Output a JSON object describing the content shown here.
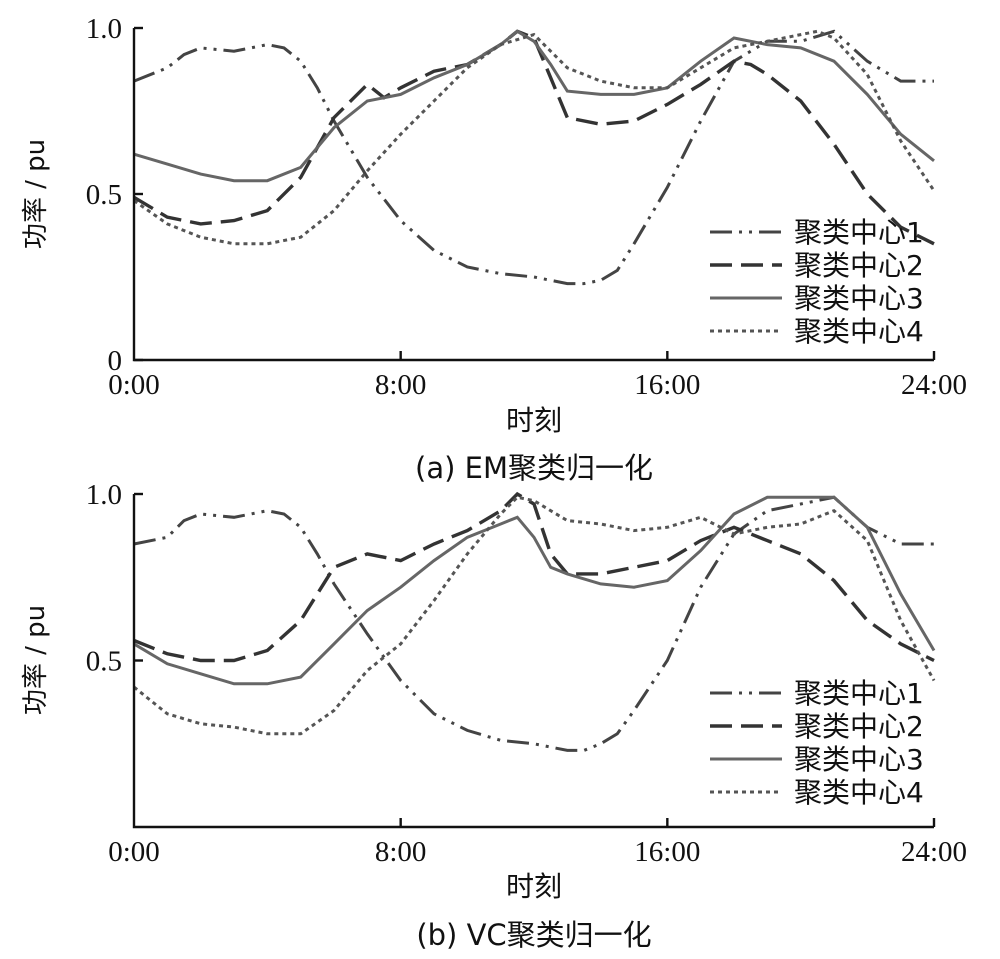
{
  "chart_data": [
    {
      "type": "line",
      "caption": "(a)  EM聚类归一化",
      "xlabel": "时刻",
      "ylabel": "功率 / pu",
      "x_ticks": [
        "0:00",
        "8:00",
        "16:00",
        "24:00"
      ],
      "y_ticks": [
        "0",
        "0.5",
        "1.0"
      ],
      "xlim": [
        0,
        24
      ],
      "ylim": [
        0,
        1.0
      ],
      "legend_position": "lower-right",
      "series": [
        {
          "name": "聚类中心1",
          "x": [
            0,
            1,
            1.5,
            2,
            3,
            4,
            4.5,
            5,
            5.5,
            6,
            7,
            8,
            9,
            10,
            11,
            12,
            13,
            13.5,
            14,
            14.5,
            15,
            16,
            17,
            18,
            19,
            20,
            21,
            22,
            23,
            24
          ],
          "values": [
            0.84,
            0.88,
            0.92,
            0.94,
            0.93,
            0.95,
            0.94,
            0.9,
            0.82,
            0.72,
            0.55,
            0.42,
            0.33,
            0.28,
            0.26,
            0.25,
            0.23,
            0.23,
            0.24,
            0.27,
            0.35,
            0.52,
            0.72,
            0.9,
            0.96,
            0.96,
            0.99,
            0.9,
            0.84,
            0.84
          ]
        },
        {
          "name": "聚类中心2",
          "x": [
            0,
            1,
            2,
            3,
            4,
            5,
            6,
            7,
            7.5,
            8,
            9,
            10,
            11,
            11.5,
            12,
            12.5,
            13,
            14,
            15,
            16,
            17,
            18,
            18.5,
            19,
            20,
            21,
            22,
            23,
            24
          ],
          "values": [
            0.49,
            0.43,
            0.41,
            0.42,
            0.45,
            0.55,
            0.73,
            0.83,
            0.79,
            0.82,
            0.87,
            0.89,
            0.95,
            0.99,
            0.97,
            0.85,
            0.73,
            0.71,
            0.72,
            0.77,
            0.83,
            0.9,
            0.89,
            0.86,
            0.78,
            0.65,
            0.5,
            0.4,
            0.35
          ]
        },
        {
          "name": "聚类中心3",
          "x": [
            0,
            1,
            2,
            3,
            4,
            5,
            6,
            7,
            8,
            9,
            10,
            11,
            11.5,
            12,
            12.5,
            13,
            14,
            15,
            16,
            17,
            18,
            19,
            20,
            21,
            22,
            23,
            24
          ],
          "values": [
            0.62,
            0.59,
            0.56,
            0.54,
            0.54,
            0.58,
            0.7,
            0.78,
            0.8,
            0.85,
            0.89,
            0.95,
            0.99,
            0.96,
            0.89,
            0.81,
            0.8,
            0.8,
            0.82,
            0.9,
            0.97,
            0.95,
            0.94,
            0.9,
            0.8,
            0.68,
            0.6
          ]
        },
        {
          "name": "聚类中心4",
          "x": [
            0,
            1,
            2,
            3,
            4,
            5,
            6,
            7,
            8,
            9,
            10,
            11,
            12,
            13,
            14,
            15,
            16,
            17,
            18,
            19,
            20,
            20.5,
            21,
            22,
            23,
            24
          ],
          "values": [
            0.48,
            0.41,
            0.37,
            0.35,
            0.35,
            0.37,
            0.45,
            0.57,
            0.68,
            0.78,
            0.88,
            0.95,
            0.98,
            0.88,
            0.84,
            0.82,
            0.82,
            0.88,
            0.94,
            0.96,
            0.98,
            0.99,
            0.97,
            0.86,
            0.66,
            0.51
          ]
        }
      ]
    },
    {
      "type": "line",
      "caption": "(b)  VC聚类归一化",
      "xlabel": "时刻",
      "ylabel": "功率 / pu",
      "x_ticks": [
        "0:00",
        "8:00",
        "16:00",
        "24:00"
      ],
      "y_ticks": [
        "0.5",
        "1.0"
      ],
      "xlim": [
        0,
        24
      ],
      "ylim": [
        0,
        1.0
      ],
      "legend_position": "lower-right",
      "series": [
        {
          "name": "聚类中心1",
          "x": [
            0,
            1,
            1.5,
            2,
            3,
            4,
            4.5,
            5,
            5.5,
            6,
            7,
            8,
            9,
            10,
            11,
            12,
            13,
            13.5,
            14,
            14.5,
            15,
            16,
            17,
            18,
            19,
            20,
            21,
            22,
            23,
            24
          ],
          "values": [
            0.85,
            0.87,
            0.92,
            0.94,
            0.93,
            0.95,
            0.94,
            0.9,
            0.82,
            0.73,
            0.58,
            0.44,
            0.34,
            0.29,
            0.26,
            0.25,
            0.23,
            0.23,
            0.25,
            0.28,
            0.35,
            0.5,
            0.72,
            0.88,
            0.95,
            0.97,
            0.99,
            0.9,
            0.85,
            0.85
          ]
        },
        {
          "name": "聚类中心2",
          "x": [
            0,
            1,
            2,
            3,
            4,
            5,
            6,
            7,
            8,
            9,
            10,
            11,
            11.5,
            12,
            12.5,
            13,
            14,
            15,
            16,
            17,
            18,
            19,
            20,
            21,
            22,
            23,
            24
          ],
          "values": [
            0.56,
            0.52,
            0.5,
            0.5,
            0.53,
            0.62,
            0.78,
            0.82,
            0.8,
            0.85,
            0.89,
            0.95,
            1.0,
            0.97,
            0.82,
            0.76,
            0.76,
            0.78,
            0.8,
            0.86,
            0.9,
            0.86,
            0.82,
            0.74,
            0.62,
            0.55,
            0.5
          ]
        },
        {
          "name": "聚类中心3",
          "x": [
            0,
            1,
            2,
            3,
            4,
            5,
            6,
            7,
            8,
            9,
            10,
            11,
            11.5,
            12,
            12.5,
            13,
            14,
            15,
            16,
            17,
            18,
            19,
            20,
            21,
            22,
            23,
            24
          ],
          "values": [
            0.55,
            0.49,
            0.46,
            0.43,
            0.43,
            0.45,
            0.55,
            0.65,
            0.72,
            0.8,
            0.87,
            0.91,
            0.93,
            0.87,
            0.78,
            0.76,
            0.73,
            0.72,
            0.74,
            0.83,
            0.94,
            0.99,
            0.99,
            0.99,
            0.9,
            0.7,
            0.53
          ]
        },
        {
          "name": "聚类中心4",
          "x": [
            0,
            1,
            2,
            3,
            4,
            5,
            6,
            7,
            8,
            9,
            10,
            11,
            11.5,
            12,
            13,
            14,
            15,
            16,
            17,
            18,
            19,
            20,
            21,
            22,
            23,
            24
          ],
          "values": [
            0.42,
            0.34,
            0.31,
            0.3,
            0.28,
            0.28,
            0.35,
            0.47,
            0.55,
            0.68,
            0.82,
            0.94,
            0.99,
            0.98,
            0.92,
            0.91,
            0.89,
            0.9,
            0.93,
            0.88,
            0.9,
            0.91,
            0.95,
            0.86,
            0.62,
            0.44
          ]
        }
      ]
    }
  ]
}
